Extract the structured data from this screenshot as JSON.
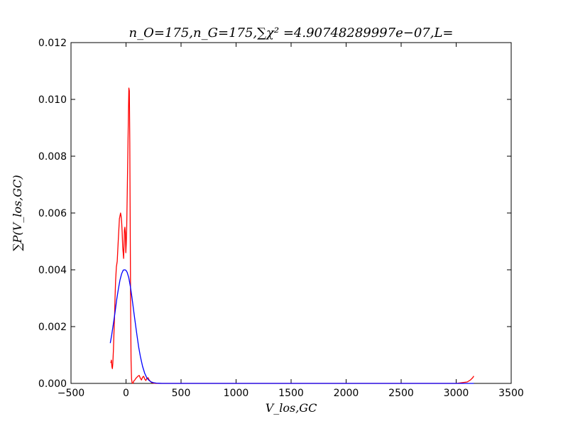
{
  "chart_data": {
    "type": "line",
    "title": "n_O=175,n_G=175,∑χ² =4.90748289997e−07,L=",
    "xlabel": "V_los,GC",
    "ylabel": "∑P(V_los,GC)",
    "xlim": [
      -500,
      3500
    ],
    "ylim": [
      0,
      0.012
    ],
    "xticks": [
      -500,
      0,
      500,
      1000,
      1500,
      2000,
      2500,
      3000,
      3500
    ],
    "xtick_labels": [
      "−500",
      "0",
      "500",
      "1000",
      "1500",
      "2000",
      "2500",
      "3000",
      "3500"
    ],
    "yticks": [
      0,
      0.002,
      0.004,
      0.006,
      0.008,
      0.01,
      0.012
    ],
    "ytick_labels": [
      "0.000",
      "0.002",
      "0.004",
      "0.006",
      "0.008",
      "0.010",
      "0.012"
    ],
    "grid": false,
    "series": [
      {
        "color": "#ff0000",
        "x": [
          -138,
          -133,
          -128,
          -124,
          -120,
          -115,
          -110,
          -104,
          -100,
          -95,
          -88,
          -80,
          -70,
          -60,
          -50,
          -45,
          -40,
          -35,
          -30,
          -26,
          -22,
          -18,
          -14,
          -10,
          -6,
          -2,
          2,
          6,
          10,
          14,
          18,
          22,
          26,
          30,
          34,
          38,
          42,
          46,
          50,
          55,
          60,
          65,
          70,
          80,
          90,
          100,
          110,
          120,
          130,
          140,
          150,
          160,
          170,
          180,
          190,
          200,
          210,
          220,
          230,
          240,
          250,
          270,
          300,
          400,
          600,
          1000,
          1500,
          2000,
          2500,
          3000,
          3100,
          3130,
          3150,
          3160
        ],
        "values": [
          0.00072,
          0.00082,
          0.00058,
          0.00052,
          0.0007,
          0.00115,
          0.0017,
          0.0024,
          0.003,
          0.0036,
          0.0041,
          0.0043,
          0.0051,
          0.0058,
          0.006,
          0.0059,
          0.0057,
          0.0053,
          0.0048,
          0.0046,
          0.0044,
          0.0049,
          0.0054,
          0.0055,
          0.0053,
          0.0046,
          0.0049,
          0.0054,
          0.0065,
          0.0075,
          0.0085,
          0.0095,
          0.0104,
          0.0103,
          0.0085,
          0.0055,
          0.0026,
          0.0008,
          0.00015,
          3e-05,
          0.0,
          2e-05,
          8e-05,
          0.00012,
          0.00018,
          0.00022,
          0.00026,
          0.00028,
          0.00018,
          0.00012,
          0.00022,
          0.00025,
          0.00015,
          0.0001,
          0.00018,
          0.0002,
          0.00012,
          8e-05,
          4e-05,
          2e-05,
          1e-05,
          0.0,
          0.0,
          0.0,
          0.0,
          0.0,
          0.0,
          0.0,
          0.0,
          0.0,
          5e-05,
          0.00012,
          0.0002,
          0.00026
        ]
      },
      {
        "color": "#0000ff",
        "x": [
          -143,
          -130,
          -115,
          -100,
          -85,
          -70,
          -55,
          -40,
          -25,
          -10,
          0,
          10,
          25,
          40,
          55,
          70,
          85,
          100,
          115,
          130,
          150,
          170,
          190,
          210,
          230,
          250,
          275,
          300,
          325,
          350,
          400,
          500,
          700,
          1000,
          1500,
          2000,
          2500,
          3000,
          3160
        ],
        "values": [
          0.00142,
          0.0017,
          0.0021,
          0.0025,
          0.00294,
          0.00332,
          0.00364,
          0.00386,
          0.00399,
          0.004,
          0.00398,
          0.00391,
          0.00372,
          0.0034,
          0.003,
          0.00255,
          0.0021,
          0.00168,
          0.00128,
          0.00095,
          0.0006,
          0.00035,
          0.00019,
          0.0001,
          5e-05,
          2.5e-05,
          1e-05,
          4e-06,
          1e-06,
          5e-07,
          0.0,
          0.0,
          0.0,
          0.0,
          0.0,
          0.0,
          0.0,
          0.0,
          0.0
        ]
      }
    ]
  }
}
